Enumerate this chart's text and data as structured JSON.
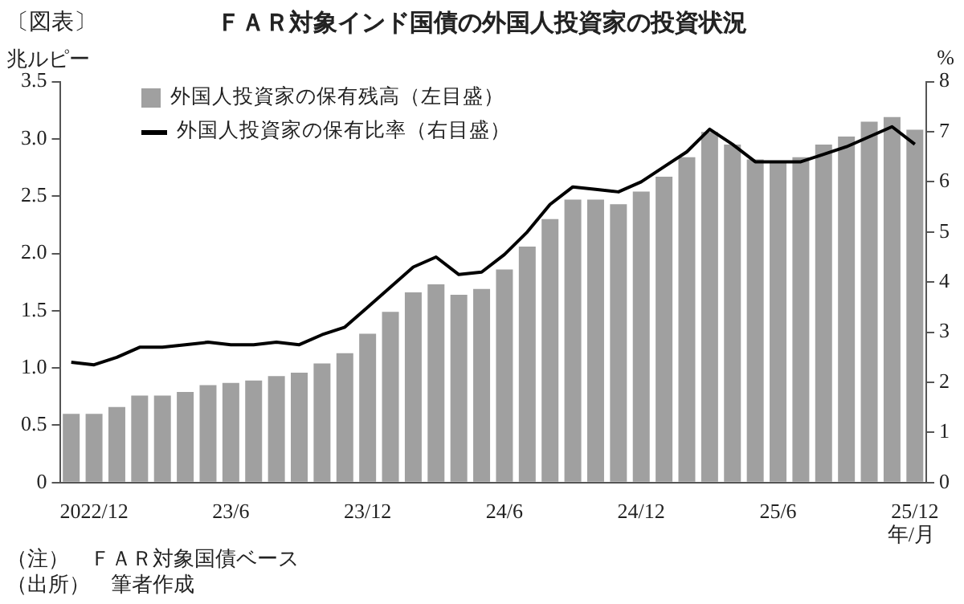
{
  "chart_data": {
    "type": "bar",
    "title": "ＦＡＲ対象インド国債の外国人投資家の投資状況",
    "ylabel": "兆ルピー",
    "y2label": "%",
    "xlabel": "年/月",
    "categories": [
      null,
      "2022/12",
      null,
      null,
      null,
      null,
      null,
      "23/6",
      null,
      null,
      null,
      null,
      null,
      "23/12",
      null,
      null,
      null,
      null,
      null,
      "24/6",
      null,
      null,
      null,
      null,
      null,
      "24/12",
      null,
      null,
      null,
      null,
      null,
      "25/6",
      null,
      null,
      null,
      null,
      null,
      "25/12"
    ],
    "series": [
      {
        "name": "外国人投資家の保有残高（左目盛）",
        "type": "bar",
        "color": "#a0a0a0",
        "values": [
          0.6,
          0.6,
          0.66,
          0.76,
          0.76,
          0.79,
          0.85,
          0.87,
          0.89,
          0.93,
          0.96,
          1.04,
          1.13,
          1.3,
          1.49,
          1.66,
          1.73,
          1.64,
          1.69,
          1.86,
          2.06,
          2.3,
          2.47,
          2.47,
          2.43,
          2.54,
          2.67,
          2.84,
          3.06,
          2.95,
          2.82,
          2.8,
          2.84,
          2.95,
          3.02,
          3.15,
          3.19,
          3.08
        ]
      },
      {
        "name": "外国人投資家の保有比率（右目盛）",
        "type": "line",
        "axis": "y2",
        "color": "#000000",
        "values": [
          2.4,
          2.35,
          2.5,
          2.7,
          2.7,
          2.75,
          2.8,
          2.75,
          2.75,
          2.8,
          2.75,
          2.95,
          3.1,
          3.5,
          3.9,
          4.3,
          4.5,
          4.15,
          4.2,
          4.55,
          5.0,
          5.55,
          5.9,
          5.85,
          5.8,
          6.0,
          6.3,
          6.6,
          7.05,
          6.75,
          6.4,
          6.4,
          6.4,
          6.55,
          6.7,
          6.9,
          7.1,
          6.75
        ]
      }
    ],
    "ylim": [
      0,
      3.5
    ],
    "yticks": [
      {
        "value": 0,
        "label": "0"
      },
      {
        "value": 0.5,
        "label": "0.5"
      },
      {
        "value": 1,
        "label": "1.0"
      },
      {
        "value": 1.5,
        "label": "1.5"
      },
      {
        "value": 2,
        "label": "2.0"
      },
      {
        "value": 2.5,
        "label": "2.5"
      },
      {
        "value": 3,
        "label": "3.0"
      },
      {
        "value": 3.5,
        "label": "3.5"
      }
    ],
    "y2lim": [
      0,
      8
    ],
    "y2ticks": [
      0,
      1,
      2,
      3,
      4,
      5,
      6,
      7,
      8
    ],
    "marker": "none",
    "legend": "top left",
    "annotations": [
      "〔図表〕",
      "（注）　ＦＡＲ対象国債ベース",
      "（出所）　筆者作成"
    ]
  }
}
